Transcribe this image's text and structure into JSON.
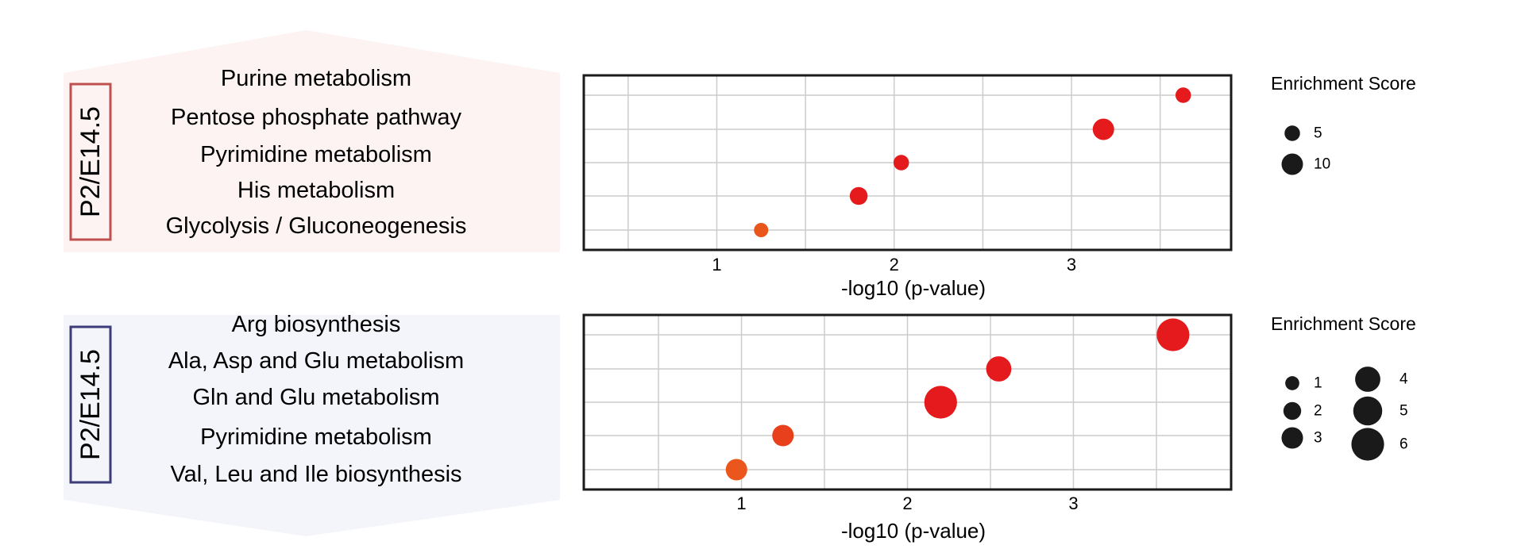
{
  "panels": [
    {
      "group_label": "P2/E14.5",
      "group_color": "#c0504d",
      "panel_fill": "#fdf3f3",
      "chart_data": {
        "type": "scatter",
        "categories": [
          "Purine metabolism",
          "Pentose phosphate pathway",
          "Pyrimidine metabolism",
          "His metabolism",
          "Glycolysis / Gluconeogenesis"
        ],
        "x": [
          3.63,
          3.18,
          2.04,
          1.8,
          1.25
        ],
        "size": [
          5,
          10,
          5,
          7,
          4
        ],
        "colors": [
          "#e41a1c",
          "#e41a1c",
          "#e41a1c",
          "#e41a1c",
          "#e8561c"
        ],
        "xlabel": "-log10 (p-value)",
        "xlim": [
          0.25,
          3.9
        ],
        "xticks": [
          1,
          2,
          3
        ],
        "grid": true,
        "legend": {
          "title": "Enrichment Score",
          "position": "right",
          "entries": [
            {
              "label": "5",
              "size": 5
            },
            {
              "label": "10",
              "size": 10
            }
          ]
        }
      }
    },
    {
      "group_label": "P2/E14.5",
      "group_color": "#3c3c7a",
      "panel_fill": "#f4f4fb",
      "chart_data": {
        "type": "scatter",
        "categories": [
          "Arg biosynthesis",
          "Ala, Asp and Glu metabolism",
          "Gln and Glu metabolism",
          "Pyrimidine metabolism",
          "Val, Leu and Ile biosynthesis"
        ],
        "x": [
          3.6,
          2.55,
          2.2,
          1.25,
          0.97
        ],
        "size": [
          6,
          4,
          6,
          3,
          3
        ],
        "colors": [
          "#e41a1c",
          "#e41a1c",
          "#e41a1c",
          "#e8401c",
          "#ea561c"
        ],
        "xlabel": "-log10 (p-value)",
        "xlim": [
          0.05,
          3.95
        ],
        "xticks": [
          1,
          2,
          3
        ],
        "grid": true,
        "legend": {
          "title": "Enrichment Score",
          "position": "right",
          "entries": [
            {
              "label": "1",
              "size": 1
            },
            {
              "label": "2",
              "size": 2
            },
            {
              "label": "3",
              "size": 3
            },
            {
              "label": "4",
              "size": 4
            },
            {
              "label": "5",
              "size": 5
            },
            {
              "label": "6",
              "size": 6
            }
          ]
        }
      }
    }
  ]
}
